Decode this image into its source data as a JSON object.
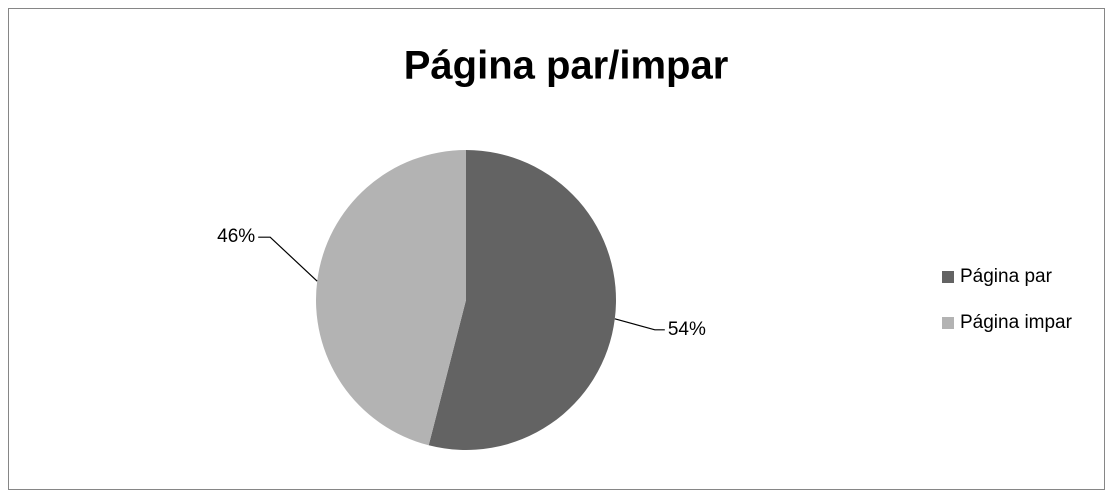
{
  "chart_data": {
    "type": "pie",
    "title": "Página par/impar",
    "categories": [
      "Página par",
      "Página impar"
    ],
    "values": [
      54,
      46
    ],
    "value_labels": [
      "54%",
      "46%"
    ],
    "colors": [
      "#636363",
      "#b3b3b3"
    ],
    "legend": "right"
  }
}
